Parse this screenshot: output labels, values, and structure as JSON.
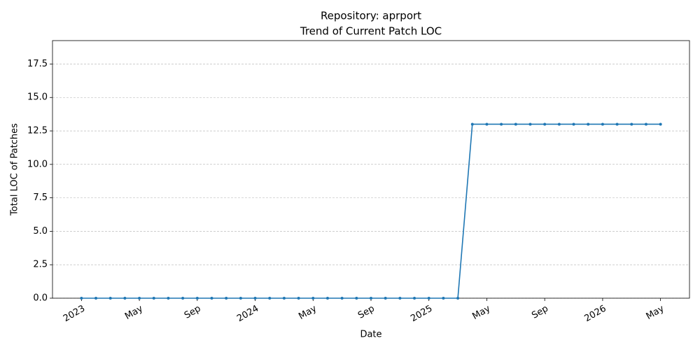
{
  "chart_data": {
    "type": "line",
    "title": "Repository: aprport",
    "subtitle": "Trend of Current Patch LOC",
    "x_label": "Date",
    "y_label": "Total LOC of Patches",
    "x": [
      "2023-01",
      "2023-02",
      "2023-03",
      "2023-04",
      "2023-05",
      "2023-06",
      "2023-07",
      "2023-08",
      "2023-09",
      "2023-10",
      "2023-11",
      "2023-12",
      "2024-01",
      "2024-02",
      "2024-03",
      "2024-04",
      "2024-05",
      "2024-06",
      "2024-07",
      "2024-08",
      "2024-09",
      "2024-10",
      "2024-11",
      "2024-12",
      "2025-01",
      "2025-02",
      "2025-03",
      "2025-04",
      "2025-05",
      "2025-06",
      "2025-07",
      "2025-08",
      "2025-09",
      "2025-10",
      "2025-11",
      "2025-12",
      "2026-01",
      "2026-02",
      "2026-03",
      "2026-04",
      "2026-05"
    ],
    "values": [
      0,
      0,
      0,
      0,
      0,
      0,
      0,
      0,
      0,
      0,
      0,
      0,
      0,
      0,
      0,
      0,
      0,
      0,
      0,
      0,
      0,
      0,
      0,
      0,
      0,
      0,
      0,
      13,
      13,
      13,
      13,
      13,
      13,
      13,
      13,
      13,
      13,
      13,
      13,
      13,
      13
    ],
    "color": "#1f77b4",
    "xlim": [
      "2022-11",
      "2026-07"
    ],
    "xticks": [
      {
        "value": "2023-01",
        "label": "2023"
      },
      {
        "value": "2023-05",
        "label": "May"
      },
      {
        "value": "2023-09",
        "label": "Sep"
      },
      {
        "value": "2024-01",
        "label": "2024"
      },
      {
        "value": "2024-05",
        "label": "May"
      },
      {
        "value": "2024-09",
        "label": "Sep"
      },
      {
        "value": "2025-01",
        "label": "2025"
      },
      {
        "value": "2025-05",
        "label": "May"
      },
      {
        "value": "2025-09",
        "label": "Sep"
      },
      {
        "value": "2026-01",
        "label": "2026"
      },
      {
        "value": "2026-05",
        "label": "May"
      }
    ],
    "ylim": [
      0,
      19.25
    ],
    "yticks": [
      {
        "value": 0,
        "label": "0.0"
      },
      2.5,
      {
        "value": 5,
        "label": "5.0"
      },
      7.5,
      {
        "value": 10,
        "label": "10.0"
      },
      12.5,
      {
        "value": 15,
        "label": "15.0"
      },
      17.5
    ],
    "grid": true
  }
}
